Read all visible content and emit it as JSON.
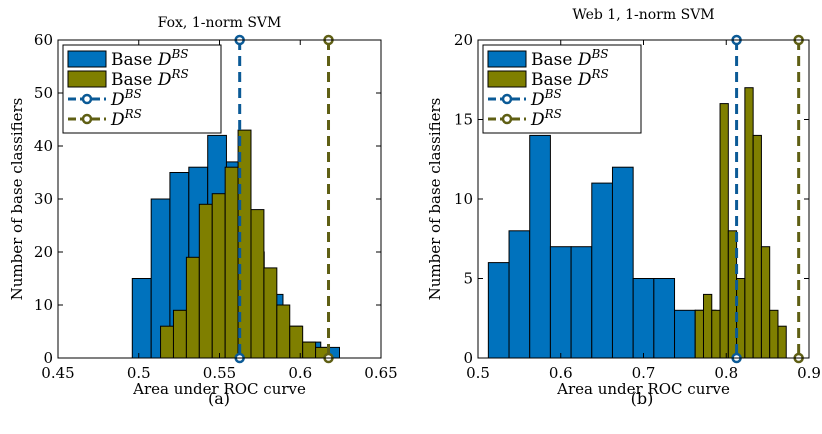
{
  "chart_data": [
    {
      "type": "bar",
      "title": "Fox, 1-norm SVM",
      "caption": "(a)",
      "xlabel": "Area under ROC curve",
      "ylabel": "Number of base classifiers",
      "xlim": [
        0.45,
        0.65
      ],
      "ylim": [
        0,
        60
      ],
      "xticks": [
        0.45,
        0.5,
        0.55,
        0.6,
        0.65
      ],
      "xtick_labels": [
        "0.45",
        "0.5",
        "0.55",
        "0.6",
        "0.65"
      ],
      "yticks": [
        0,
        10,
        20,
        30,
        40,
        50,
        60
      ],
      "ytick_labels": [
        "0",
        "10",
        "20",
        "30",
        "40",
        "50",
        "60"
      ],
      "grid": false,
      "legend_position": "top-left",
      "series": [
        {
          "name": "Base D^BS",
          "legend_main": "Base ",
          "legend_sub": "D",
          "legend_sup": "BS",
          "kind": "histogram",
          "color": "#0072BD",
          "bins": [
            {
              "x0": 0.496,
              "x1": 0.5077,
              "count": 15
            },
            {
              "x0": 0.5077,
              "x1": 0.5193,
              "count": 30
            },
            {
              "x0": 0.5193,
              "x1": 0.531,
              "count": 35
            },
            {
              "x0": 0.531,
              "x1": 0.5427,
              "count": 36
            },
            {
              "x0": 0.5427,
              "x1": 0.5543,
              "count": 42
            },
            {
              "x0": 0.5543,
              "x1": 0.566,
              "count": 37
            },
            {
              "x0": 0.566,
              "x1": 0.5777,
              "count": 20
            },
            {
              "x0": 0.5777,
              "x1": 0.5893,
              "count": 12
            },
            {
              "x0": 0.5893,
              "x1": 0.601,
              "count": 6
            },
            {
              "x0": 0.601,
              "x1": 0.6127,
              "count": 3
            },
            {
              "x0": 0.6127,
              "x1": 0.6243,
              "count": 2
            }
          ]
        },
        {
          "name": "Base D^RS",
          "legend_main": "Base ",
          "legend_sub": "D",
          "legend_sup": "RS",
          "kind": "histogram",
          "color": "#7F7F00",
          "bins": [
            {
              "x0": 0.5135,
              "x1": 0.5215,
              "count": 6
            },
            {
              "x0": 0.5215,
              "x1": 0.5295,
              "count": 9
            },
            {
              "x0": 0.5295,
              "x1": 0.5375,
              "count": 19
            },
            {
              "x0": 0.5375,
              "x1": 0.5455,
              "count": 29
            },
            {
              "x0": 0.5455,
              "x1": 0.5535,
              "count": 31
            },
            {
              "x0": 0.5535,
              "x1": 0.5615,
              "count": 36
            },
            {
              "x0": 0.5615,
              "x1": 0.5695,
              "count": 43
            },
            {
              "x0": 0.5695,
              "x1": 0.5775,
              "count": 28
            },
            {
              "x0": 0.5775,
              "x1": 0.5855,
              "count": 17
            },
            {
              "x0": 0.5855,
              "x1": 0.5935,
              "count": 10
            },
            {
              "x0": 0.5935,
              "x1": 0.6015,
              "count": 6
            },
            {
              "x0": 0.6015,
              "x1": 0.6095,
              "count": 3
            },
            {
              "x0": 0.6095,
              "x1": 0.6175,
              "count": 2
            }
          ]
        },
        {
          "name": "D^BS",
          "legend_main": "",
          "legend_sub": "D",
          "legend_sup": "BS",
          "kind": "vline",
          "x": 0.5625,
          "color": "#0B5A96"
        },
        {
          "name": "D^RS",
          "legend_main": "",
          "legend_sub": "D",
          "legend_sup": "RS",
          "kind": "vline",
          "x": 0.6175,
          "color": "#5F5F14"
        }
      ]
    },
    {
      "type": "bar",
      "title": "Web 1, 1-norm SVM",
      "caption": "(b)",
      "xlabel": "Area under ROC curve",
      "ylabel": "Number of base classifiers",
      "xlim": [
        0.5,
        0.9
      ],
      "ylim": [
        0,
        20
      ],
      "xticks": [
        0.5,
        0.6,
        0.7,
        0.8,
        0.9
      ],
      "xtick_labels": [
        "0.5",
        "0.6",
        "0.7",
        "0.8",
        "0.9"
      ],
      "yticks": [
        0,
        5,
        10,
        15,
        20
      ],
      "ytick_labels": [
        "0",
        "5",
        "10",
        "15",
        "20"
      ],
      "grid": false,
      "legend_position": "top-left",
      "series": [
        {
          "name": "Base D^BS",
          "legend_main": "Base ",
          "legend_sub": "D",
          "legend_sup": "BS",
          "kind": "histogram",
          "color": "#0072BD",
          "bins": [
            {
              "x0": 0.5125,
              "x1": 0.5375,
              "count": 6
            },
            {
              "x0": 0.5375,
              "x1": 0.5625,
              "count": 8
            },
            {
              "x0": 0.5625,
              "x1": 0.5875,
              "count": 14
            },
            {
              "x0": 0.5875,
              "x1": 0.6125,
              "count": 7
            },
            {
              "x0": 0.6125,
              "x1": 0.6375,
              "count": 7
            },
            {
              "x0": 0.6375,
              "x1": 0.6625,
              "count": 11
            },
            {
              "x0": 0.6625,
              "x1": 0.6875,
              "count": 12
            },
            {
              "x0": 0.6875,
              "x1": 0.7125,
              "count": 5
            },
            {
              "x0": 0.7125,
              "x1": 0.7375,
              "count": 5
            },
            {
              "x0": 0.7375,
              "x1": 0.7625,
              "count": 3
            },
            {
              "x0": 0.7625,
              "x1": 0.7875,
              "count": 3
            },
            {
              "x0": 0.7875,
              "x1": 0.8125,
              "count": 1
            }
          ]
        },
        {
          "name": "Base D^RS",
          "legend_main": "Base ",
          "legend_sub": "D",
          "legend_sup": "RS",
          "kind": "histogram",
          "color": "#7F7F00",
          "bins": [
            {
              "x0": 0.7625,
              "x1": 0.7725,
              "count": 3
            },
            {
              "x0": 0.7725,
              "x1": 0.7825,
              "count": 4
            },
            {
              "x0": 0.7825,
              "x1": 0.7925,
              "count": 3
            },
            {
              "x0": 0.7925,
              "x1": 0.8025,
              "count": 16
            },
            {
              "x0": 0.8025,
              "x1": 0.8125,
              "count": 8
            },
            {
              "x0": 0.8125,
              "x1": 0.8225,
              "count": 5
            },
            {
              "x0": 0.8225,
              "x1": 0.8325,
              "count": 17
            },
            {
              "x0": 0.8325,
              "x1": 0.8425,
              "count": 14
            },
            {
              "x0": 0.8425,
              "x1": 0.8525,
              "count": 7
            },
            {
              "x0": 0.8525,
              "x1": 0.8625,
              "count": 3
            },
            {
              "x0": 0.8625,
              "x1": 0.8725,
              "count": 2
            }
          ]
        },
        {
          "name": "D^BS",
          "legend_main": "",
          "legend_sub": "D",
          "legend_sup": "BS",
          "kind": "vline",
          "x": 0.8125,
          "color": "#0B5A96"
        },
        {
          "name": "D^RS",
          "legend_main": "",
          "legend_sub": "D",
          "legend_sup": "RS",
          "kind": "vline",
          "x": 0.8875,
          "color": "#5F5F14"
        }
      ]
    }
  ]
}
